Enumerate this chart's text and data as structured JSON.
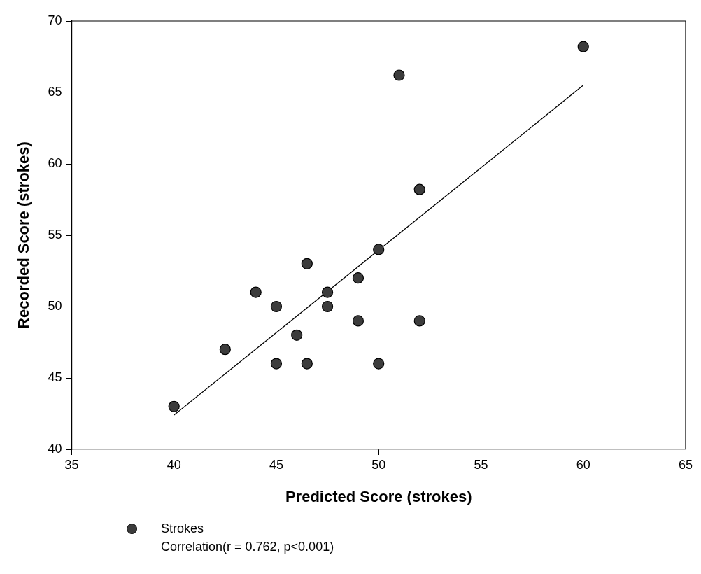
{
  "chart_data": {
    "type": "scatter",
    "xlabel": "Predicted Score (strokes)",
    "ylabel": "Recorded Score (strokes)",
    "xlim": [
      35,
      65
    ],
    "xticks": [
      35,
      40,
      45,
      50,
      55,
      60,
      65
    ],
    "ylim": [
      40,
      70
    ],
    "yticks": [
      40,
      45,
      50,
      55,
      60,
      65,
      70
    ],
    "grid": false,
    "legend": "bottom",
    "marker": "circle",
    "series": [
      {
        "name": "Strokes",
        "color": "#3c3c3c",
        "x": [
          40,
          42.5,
          44,
          45,
          45,
          46,
          46.5,
          46.5,
          47.5,
          47.5,
          49,
          49,
          50,
          50,
          51,
          52,
          52,
          60
        ],
        "values": [
          43,
          47,
          51,
          50,
          46,
          48,
          53,
          46,
          51,
          50,
          52,
          49,
          54,
          46,
          66.2,
          58.2,
          49,
          68.2
        ]
      },
      {
        "name": "Correlation(r = 0.762, p<0.001)",
        "type": "line",
        "color": "#000000",
        "marker": "none",
        "x": [
          40,
          60
        ],
        "values": [
          42.4,
          65.5
        ]
      }
    ]
  }
}
